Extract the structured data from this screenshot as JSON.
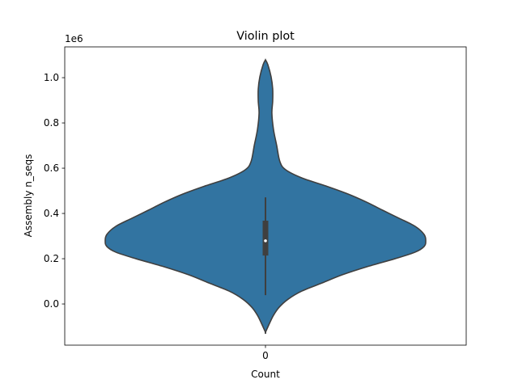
{
  "chart_data": {
    "type": "violin",
    "title": "Violin plot",
    "xlabel": "Count",
    "ylabel": "Assembly n_seqs",
    "y_multiplier_label": "1e6",
    "categories": [
      "0"
    ],
    "ylim": [
      -0.182,
      1.136
    ],
    "yticks": [
      0.0,
      0.2,
      0.4,
      0.6,
      0.8,
      1.0
    ],
    "ytick_labels": [
      "0.0",
      "0.2",
      "0.4",
      "0.6",
      "0.8",
      "1.0"
    ],
    "grid": false,
    "colors": {
      "fill": "#3274a1",
      "edge": "#3f3f3f",
      "box": "#3f3f3f",
      "median": "#ffffff"
    },
    "box": {
      "whisker_low": 0.039,
      "q1": 0.214,
      "median": 0.279,
      "q3": 0.368,
      "whisker_high": 0.471
    },
    "density_profile": [
      [
        1.079,
        0
      ],
      [
        1.057,
        0.015
      ],
      [
        1.004,
        0.035
      ],
      [
        0.95,
        0.045
      ],
      [
        0.896,
        0.045
      ],
      [
        0.843,
        0.04
      ],
      [
        0.771,
        0.05
      ],
      [
        0.7,
        0.07
      ],
      [
        0.629,
        0.09
      ],
      [
        0.593,
        0.126
      ],
      [
        0.557,
        0.227
      ],
      [
        0.521,
        0.379
      ],
      [
        0.486,
        0.515
      ],
      [
        0.45,
        0.631
      ],
      [
        0.414,
        0.732
      ],
      [
        0.379,
        0.833
      ],
      [
        0.343,
        0.934
      ],
      [
        0.307,
        0.99
      ],
      [
        0.279,
        1
      ],
      [
        0.254,
        0.99
      ],
      [
        0.229,
        0.934
      ],
      [
        0.2,
        0.808
      ],
      [
        0.164,
        0.631
      ],
      [
        0.129,
        0.48
      ],
      [
        0.093,
        0.354
      ],
      [
        0.057,
        0.227
      ],
      [
        0.021,
        0.141
      ],
      [
        -0.014,
        0.086
      ],
      [
        -0.05,
        0.05
      ],
      [
        -0.086,
        0.025
      ],
      [
        -0.125,
        0
      ]
    ]
  }
}
